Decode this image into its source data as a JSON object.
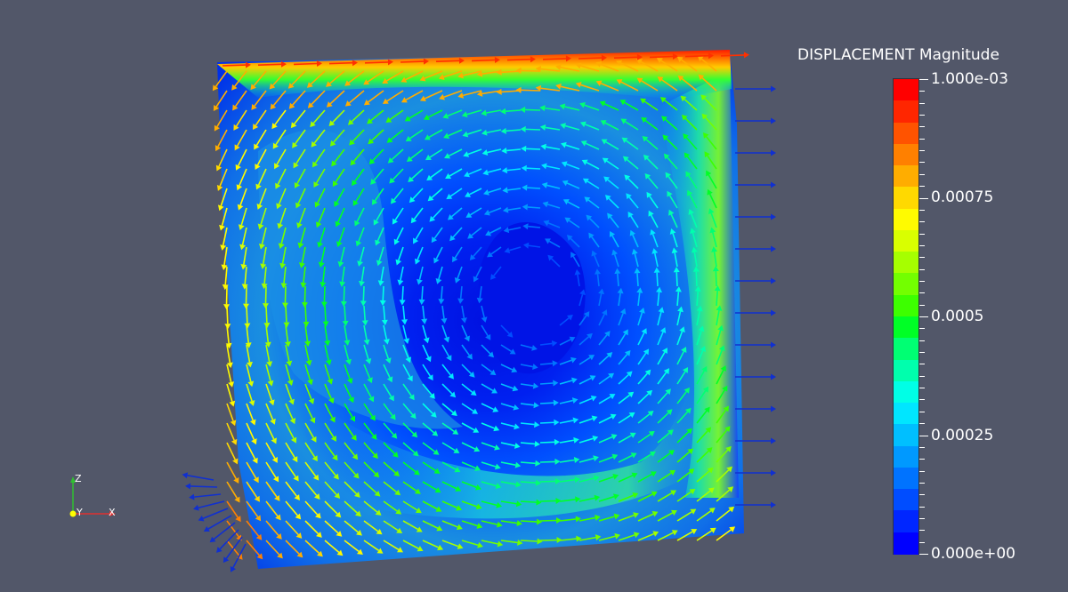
{
  "legend": {
    "title": "DISPLACEMENT Magnitude",
    "labels": [
      "1.000e-03",
      "0.00075",
      "0.0005",
      "0.00025",
      "0.000e+00"
    ],
    "range": [
      0,
      0.001
    ],
    "colors": [
      "#ff0000",
      "#ff2600",
      "#ff5300",
      "#ff8000",
      "#ffad00",
      "#ffd900",
      "#fffb00",
      "#d9ff00",
      "#a6ff00",
      "#73ff00",
      "#3dff00",
      "#00ff26",
      "#00ff73",
      "#00ffad",
      "#00ffe6",
      "#00e6ff",
      "#00bfff",
      "#0099ff",
      "#0073ff",
      "#004dff",
      "#0026ff",
      "#0000ff"
    ]
  },
  "axes": {
    "x": "X",
    "y": "Y",
    "z": "Z"
  }
}
